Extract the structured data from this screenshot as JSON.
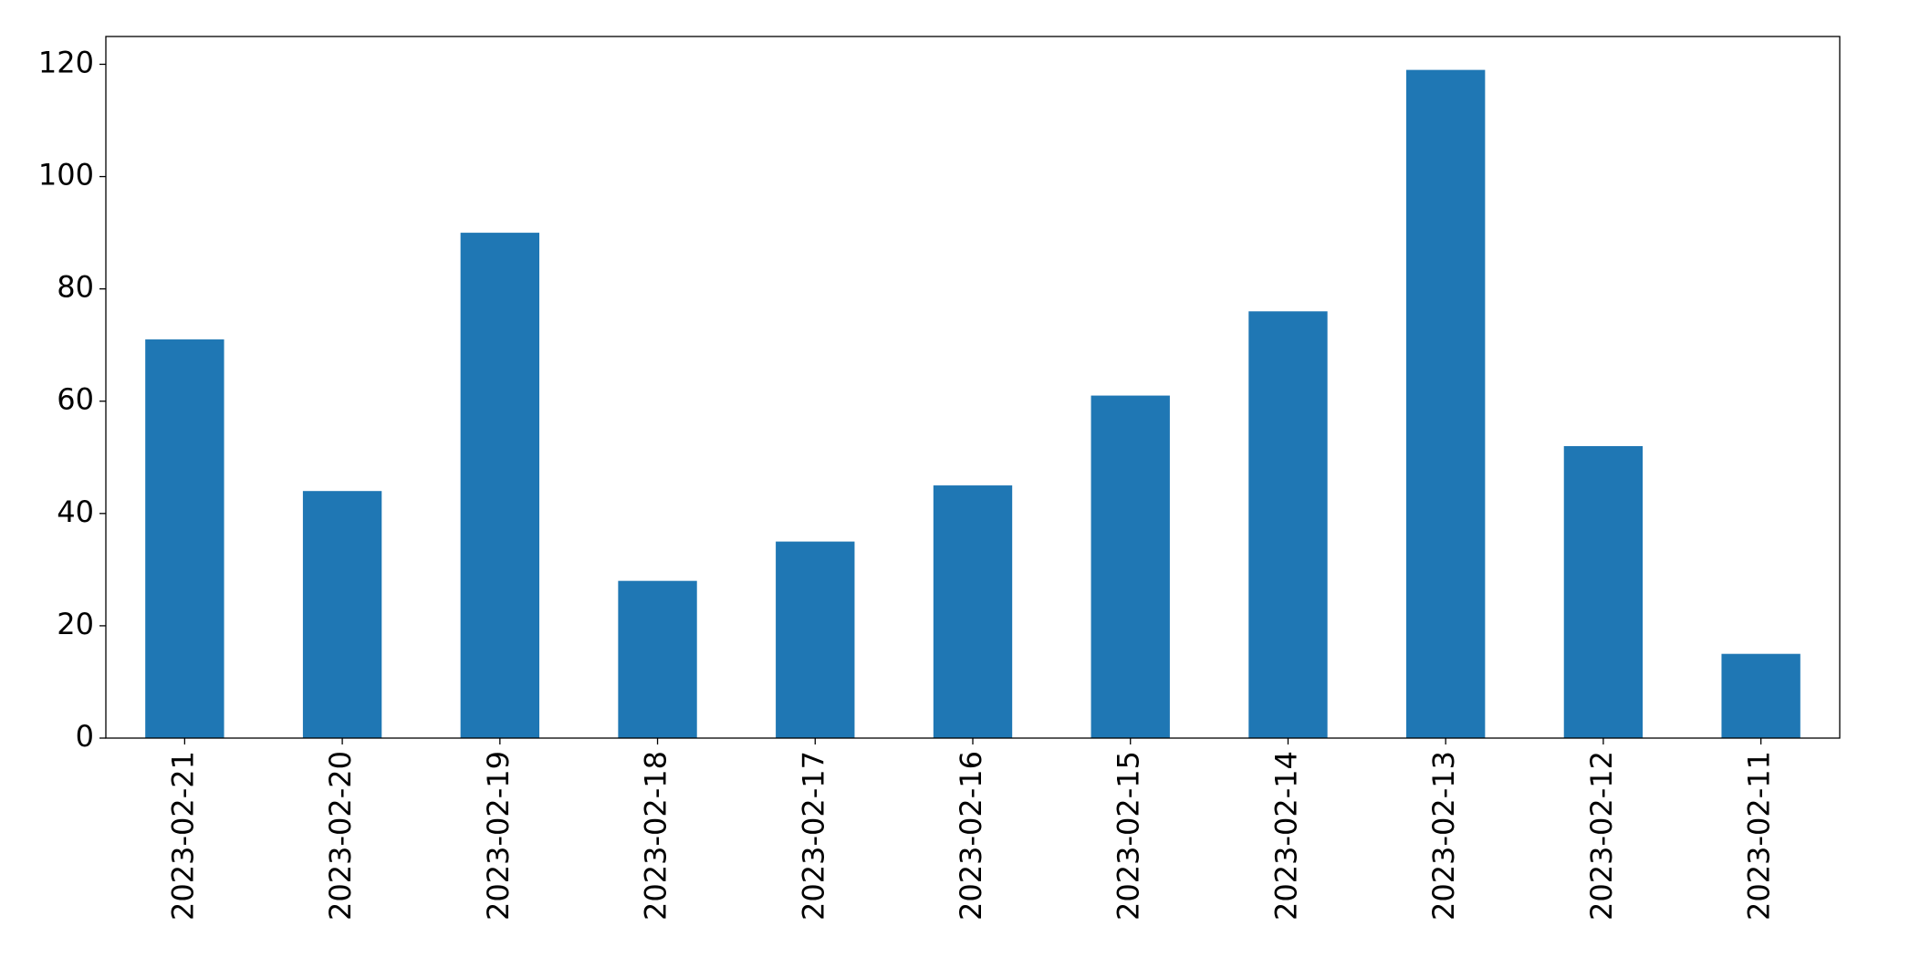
{
  "chart_data": {
    "type": "bar",
    "categories": [
      "2023-02-21",
      "2023-02-20",
      "2023-02-19",
      "2023-02-18",
      "2023-02-17",
      "2023-02-16",
      "2023-02-15",
      "2023-02-14",
      "2023-02-13",
      "2023-02-12",
      "2023-02-11"
    ],
    "values": [
      71,
      44,
      90,
      28,
      35,
      45,
      61,
      76,
      119,
      52,
      15
    ],
    "color": "#1f77b4",
    "ylim": [
      0,
      124.95
    ],
    "yticks": [
      0,
      20,
      40,
      60,
      80,
      100,
      120
    ],
    "grid": false
  }
}
